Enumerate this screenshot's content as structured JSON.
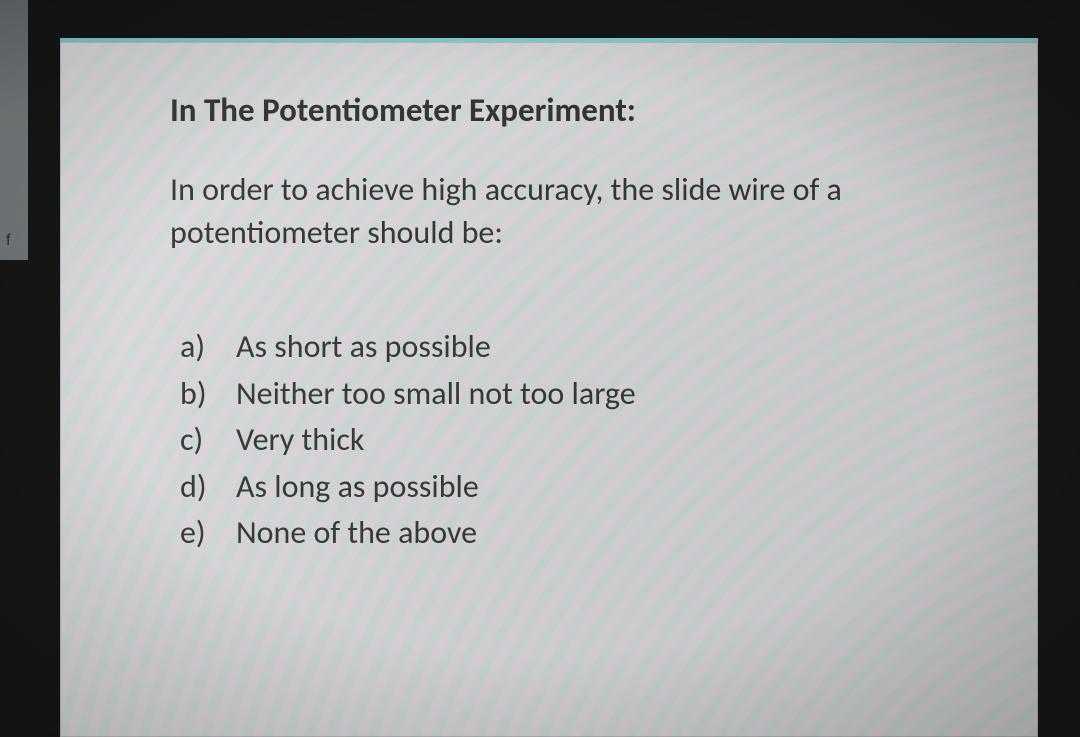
{
  "sidebar": {
    "partial_label": "f"
  },
  "card": {
    "accent_color": "#7fccc9",
    "background_color": "#e9eaea",
    "title": "In The Potentiometer Experiment:",
    "title_fontsize": 33,
    "title_weight": "700",
    "question": "In order to achieve high accuracy, the slide wire of a potentiometer should be:",
    "question_fontsize": 32,
    "options_fontsize": 32,
    "text_color": "#2e2e2e",
    "options": [
      {
        "letter": "a)",
        "text": "As short as possible"
      },
      {
        "letter": "b)",
        "text": "Neither too small not too large"
      },
      {
        "letter": "c)",
        "text": "Very thick"
      },
      {
        "letter": "d)",
        "text": "As long as possible"
      },
      {
        "letter": "e)",
        "text": "None of the above"
      }
    ]
  }
}
